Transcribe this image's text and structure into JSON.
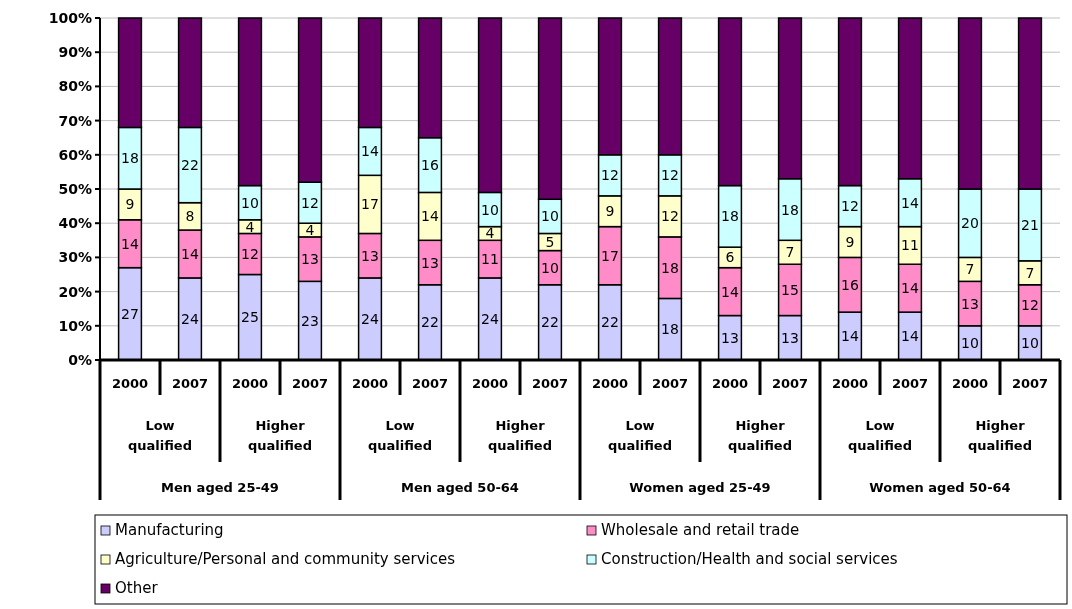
{
  "chart_data": {
    "type": "bar",
    "stacked": true,
    "categories": [
      "2000",
      "2007",
      "2000",
      "2007",
      "2000",
      "2007",
      "2000",
      "2007",
      "2000",
      "2007",
      "2000",
      "2007",
      "2000",
      "2007",
      "2000",
      "2007"
    ],
    "series": [
      {
        "name": "Manufacturing",
        "color": "#ccccff",
        "values": [
          27,
          24,
          25,
          23,
          24,
          22,
          24,
          22,
          22,
          18,
          13,
          13,
          14,
          14,
          10,
          10
        ],
        "value_labels": [
          "27",
          "24",
          "25",
          "23",
          "24",
          "22",
          "24",
          "22",
          "22",
          "18",
          "13",
          "13",
          "14",
          "14",
          "10",
          "10"
        ]
      },
      {
        "name": "Wholesale and retail trade",
        "color": "#ff8cc8",
        "values": [
          14,
          14,
          12,
          13,
          13,
          13,
          11,
          10,
          17,
          18,
          14,
          15,
          16,
          14,
          13,
          12
        ],
        "value_labels": [
          "14",
          "14",
          "12",
          "13",
          "13",
          "13",
          "11",
          "10",
          "17",
          "18",
          "14",
          "15",
          "16",
          "14",
          "13",
          "12"
        ]
      },
      {
        "name": "Agriculture/Personal and community services",
        "color": "#ffffcc",
        "values": [
          9,
          8,
          4,
          4,
          17,
          14,
          4,
          5,
          9,
          12,
          6,
          7,
          9,
          11,
          7,
          7
        ],
        "value_labels": [
          "9",
          "8",
          "4",
          "4",
          "17",
          "14",
          "4",
          "5",
          "9",
          "12",
          "6",
          "7",
          "9",
          "11",
          "7",
          "7"
        ]
      },
      {
        "name": "Construction/Health and social services",
        "color": "#ccffff",
        "values": [
          18,
          22,
          10,
          12,
          14,
          16,
          10,
          10,
          12,
          12,
          18,
          18,
          12,
          14,
          20,
          21
        ],
        "value_labels": [
          "18",
          "22",
          "10",
          "12",
          "14",
          "16",
          "10",
          "10",
          "12",
          "12",
          "18",
          "18",
          "12",
          "14",
          "20",
          "21"
        ]
      },
      {
        "name": "Other",
        "color": "#660066",
        "values": [
          32,
          32,
          49,
          48,
          32,
          35,
          51,
          53,
          40,
          40,
          49,
          47,
          49,
          47,
          50,
          50
        ]
      }
    ],
    "ylim": [
      0,
      100
    ],
    "yticks": [
      {
        "value": 0,
        "label": "0%"
      },
      {
        "value": 10,
        "label": "10%"
      },
      {
        "value": 20,
        "label": "20%"
      },
      {
        "value": 30,
        "label": "30%"
      },
      {
        "value": 40,
        "label": "40%"
      },
      {
        "value": 50,
        "label": "50%"
      },
      {
        "value": 60,
        "label": "60%"
      },
      {
        "value": 70,
        "label": "70%"
      },
      {
        "value": 80,
        "label": "80%"
      },
      {
        "value": 90,
        "label": "90%"
      },
      {
        "value": 100,
        "label": "100%"
      }
    ],
    "grid": "y",
    "legend": "bottom",
    "annotations": [
      "Low qualified",
      "Higher qualified",
      "Low qualified",
      "Higher qualified",
      "Low qualified",
      "Higher qualified",
      "Low qualified",
      "Higher qualified",
      "Men aged 25-49",
      "Men aged 50-64",
      "Women aged 25-49",
      "Women aged 50-64"
    ]
  }
}
